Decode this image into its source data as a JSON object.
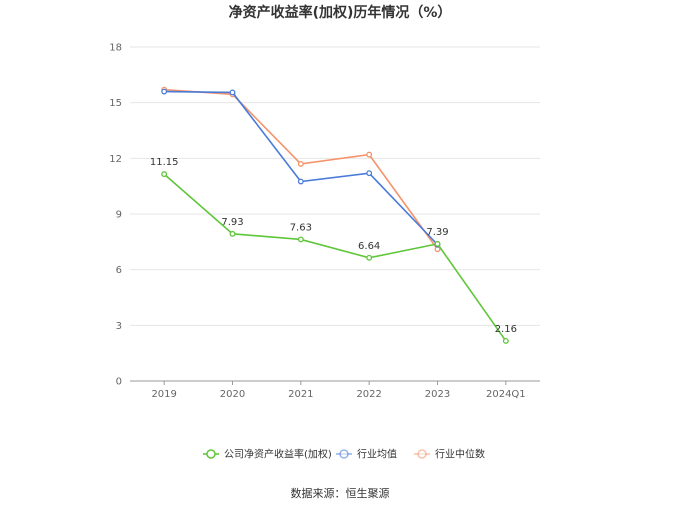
{
  "chart_data": {
    "type": "line",
    "title": "净资产收益率(加权)历年情况（%）",
    "categories": [
      "2019",
      "2020",
      "2021",
      "2022",
      "2023",
      "2024Q1"
    ],
    "ylim": [
      0,
      18
    ],
    "yticks": [
      0,
      3,
      6,
      9,
      12,
      15,
      18
    ],
    "grid": true,
    "legend_position": "bottom",
    "series": [
      {
        "name": "公司净资产收益率(加权)",
        "color": "#5fc63a",
        "values": [
          11.15,
          7.93,
          7.63,
          6.64,
          7.39,
          2.16
        ],
        "labels": [
          "11.15",
          "7.93",
          "7.63",
          "6.64",
          "7.39",
          "2.16"
        ]
      },
      {
        "name": "行业均值",
        "color": "#4a7bd9",
        "values": [
          15.6,
          15.55,
          10.75,
          11.2,
          7.35,
          null
        ]
      },
      {
        "name": "行业中位数",
        "color": "#f4936a",
        "values": [
          15.7,
          15.45,
          11.7,
          12.2,
          7.1,
          null
        ]
      }
    ]
  },
  "source": "数据来源：恒生聚源"
}
